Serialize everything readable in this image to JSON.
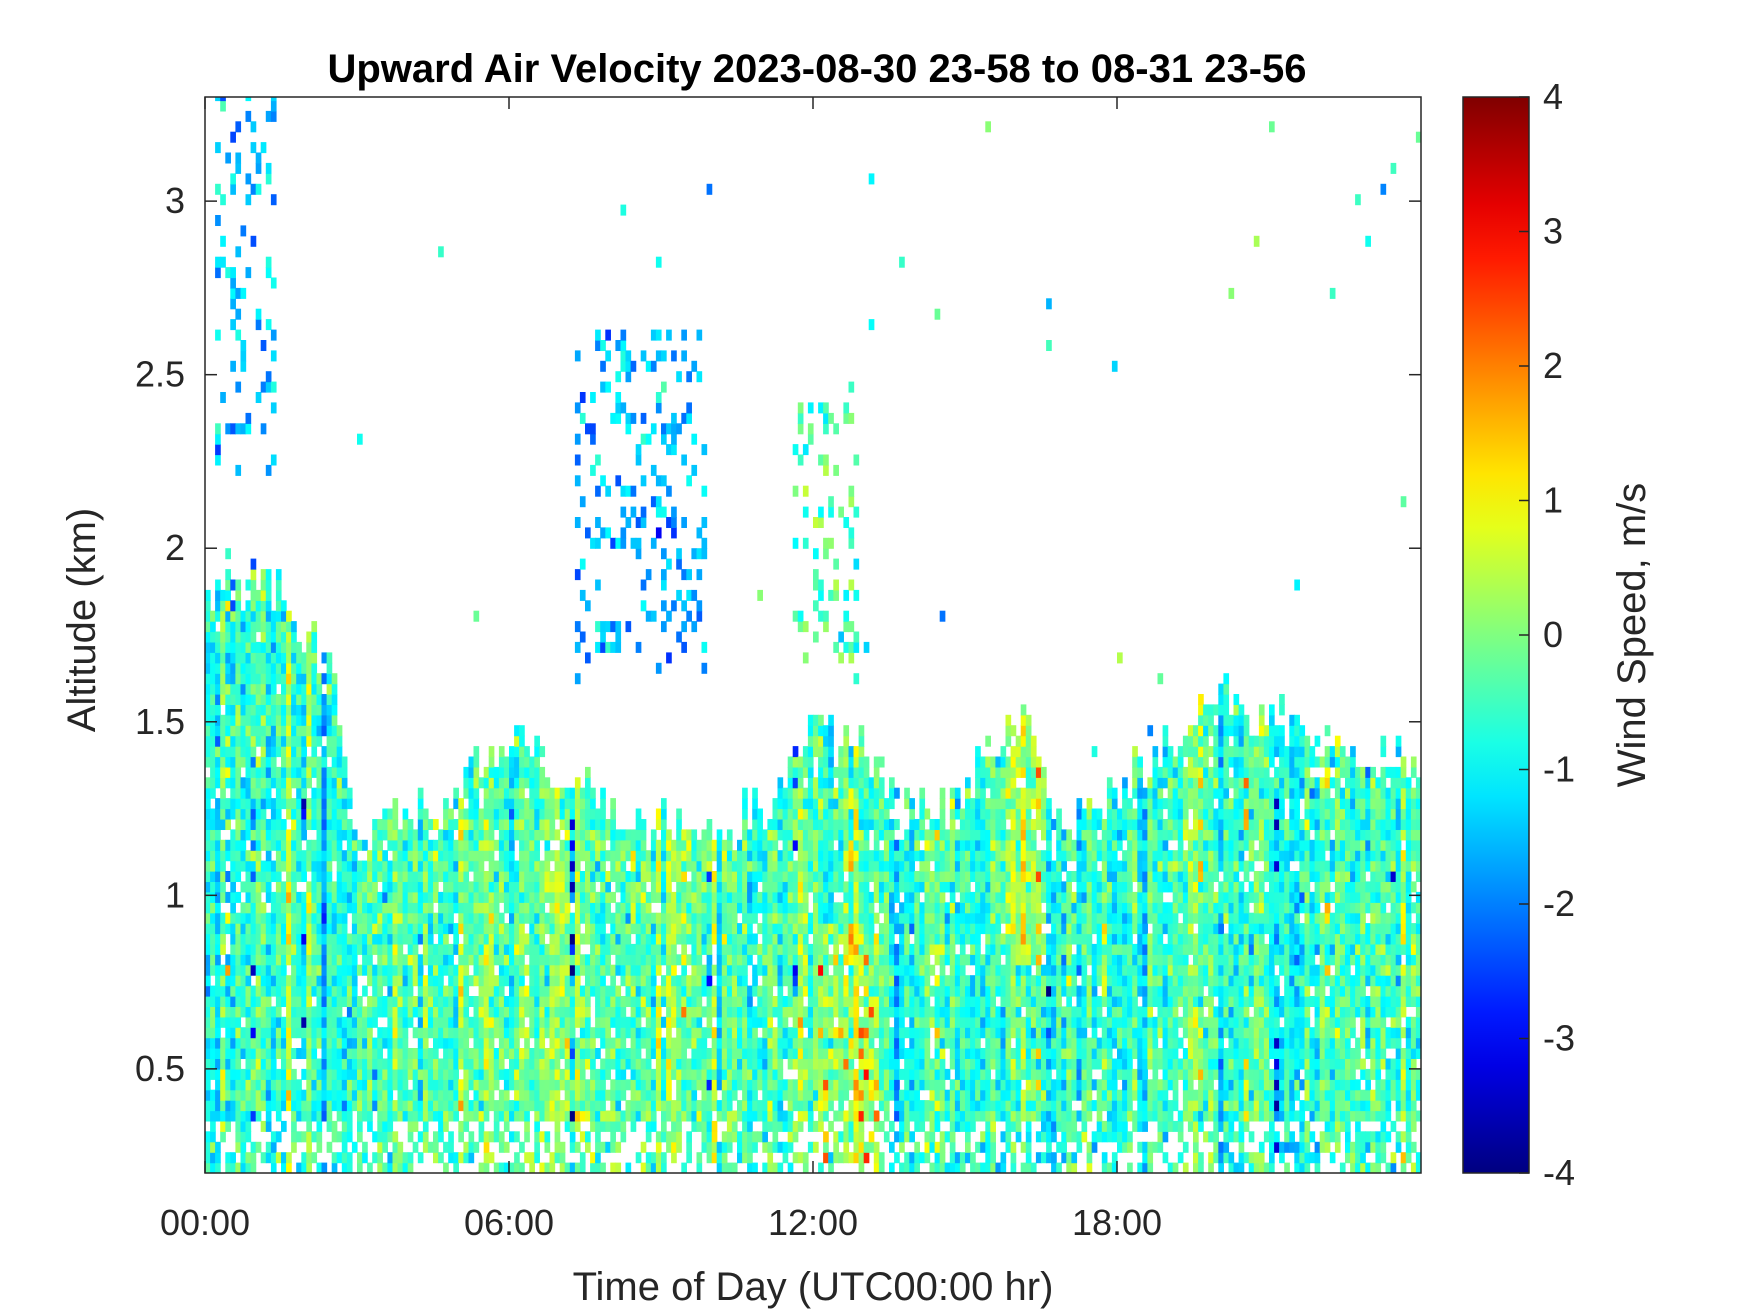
{
  "chart_data": {
    "type": "heatmap",
    "title": "Upward Air Velocity 2023-08-30 23-58 to 08-31 23-56",
    "xlabel": "Time of Day (UTC00:00 hr)",
    "ylabel": "Altitude (km)",
    "colorbar_label": "Wind Speed, m/s",
    "colormap": "jet",
    "x_unit": "hours UTC",
    "xlim": [
      0,
      24
    ],
    "ylim": [
      0.2,
      3.3
    ],
    "clim": [
      -4,
      4
    ],
    "x_ticks": [
      0,
      6,
      12,
      18
    ],
    "x_tick_labels": [
      "00:00",
      "06:00",
      "12:00",
      "18:00"
    ],
    "y_ticks": [
      0.5,
      1,
      1.5,
      2,
      2.5,
      3
    ],
    "y_tick_labels": [
      "0.5",
      "1",
      "1.5",
      "2",
      "2.5",
      "3"
    ],
    "c_ticks": [
      -4,
      -3,
      -2,
      -1,
      0,
      1,
      2,
      3,
      4
    ],
    "c_tick_labels": [
      "-4",
      "-3",
      "-2",
      "-1",
      "0",
      "1",
      "2",
      "3",
      "4"
    ],
    "grid": false,
    "approx_boundary_layer_top_km": {
      "x": [
        0,
        1,
        2,
        2.5,
        3,
        4,
        5,
        6,
        7,
        8,
        9,
        10,
        11,
        12,
        13,
        14,
        15,
        16,
        17,
        18,
        19,
        20,
        21,
        22,
        23,
        24
      ],
      "y": [
        1.85,
        1.9,
        1.75,
        1.6,
        1.15,
        1.25,
        1.3,
        1.45,
        1.35,
        1.25,
        1.2,
        1.15,
        1.25,
        1.5,
        1.4,
        1.2,
        1.3,
        1.5,
        1.15,
        1.3,
        1.45,
        1.55,
        1.5,
        1.45,
        1.4,
        1.35
      ]
    },
    "lofted_features": [
      {
        "x_range": [
          0.2,
          1.3
        ],
        "alt_range_km": [
          2.2,
          3.3
        ],
        "typical_w": -1.5
      },
      {
        "x_range": [
          7.2,
          9.8
        ],
        "alt_range_km": [
          1.6,
          2.6
        ],
        "typical_w": -1.5
      },
      {
        "x_range": [
          11.5,
          12.8
        ],
        "alt_range_km": [
          1.6,
          2.4
        ],
        "typical_w": -0.5
      },
      {
        "x_range": [
          16.5,
          16.6
        ],
        "alt_range_km": [
          2.5,
          2.8
        ],
        "typical_w": -0.8
      }
    ],
    "notable_updrafts": [
      {
        "x_range": [
          12.0,
          13.2
        ],
        "alt_range_km": [
          0.2,
          0.9
        ],
        "max_w": 3.0
      }
    ]
  }
}
